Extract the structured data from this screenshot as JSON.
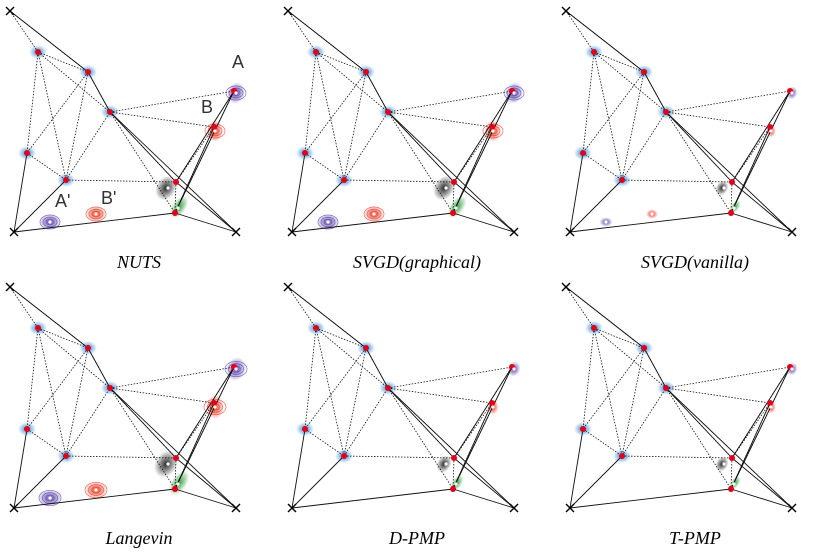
{
  "panels": [
    {
      "caption": "NUTS",
      "labels": true,
      "spread": 1.0,
      "style": "cont"
    },
    {
      "caption": "SVGD(graphical)",
      "labels": false,
      "spread": 1.0,
      "style": "cont"
    },
    {
      "caption": "SVGD(vanilla)",
      "labels": false,
      "spread": 0.6,
      "style": "dark"
    },
    {
      "caption": "Langevin",
      "labels": false,
      "spread": 1.1,
      "style": "cont"
    },
    {
      "caption": "D-PMP",
      "labels": false,
      "spread": 0.7,
      "style": "particle"
    },
    {
      "caption": "T-PMP",
      "labels": false,
      "spread": 0.6,
      "style": "particle"
    }
  ],
  "point_labels": {
    "a": "A",
    "b": "B",
    "a_prime": "A'",
    "b_prime": "B'"
  },
  "colors": {
    "blue": "#2a8ad6",
    "red": "#e8331c",
    "purple": "#5a3fa8",
    "black": "#222222",
    "green": "#2f9e3a",
    "node": "#e0001a"
  }
}
